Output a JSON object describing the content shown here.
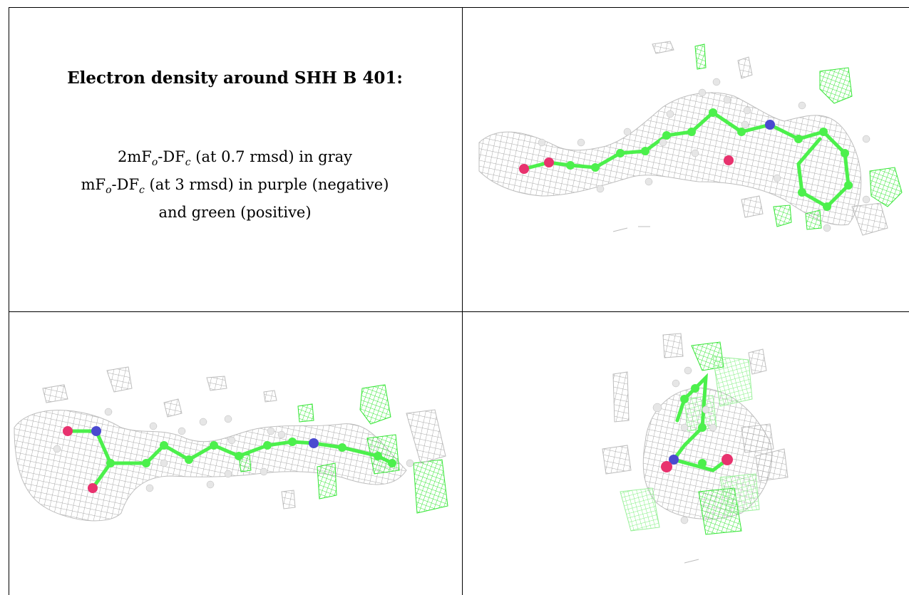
{
  "caption": {
    "title": "Electron density around SHH B 401:",
    "line1_pre": "2mF",
    "line1_sub1": "o",
    "line1_mid": "-DF",
    "line1_sub2": "c",
    "line1_post": " (at 0.7 rmsd) in gray",
    "line2_pre": "mF",
    "line2_sub1": "o",
    "line2_mid": "-DF",
    "line2_sub2": "c",
    "line2_post": " (at 3 rmsd) in purple (negative)",
    "line3": "and green (positive)"
  },
  "colors": {
    "mesh_gray": "#a8a8a8",
    "mesh_green": "#33e633",
    "carbon": "#4cf04c",
    "oxygen": "#e8326e",
    "nitrogen": "#4a4ad0",
    "hydrogen": "#e6e6e6"
  },
  "views": [
    {
      "name": "molecule-view-top-right"
    },
    {
      "name": "molecule-view-bottom-left"
    },
    {
      "name": "molecule-view-bottom-right"
    }
  ]
}
